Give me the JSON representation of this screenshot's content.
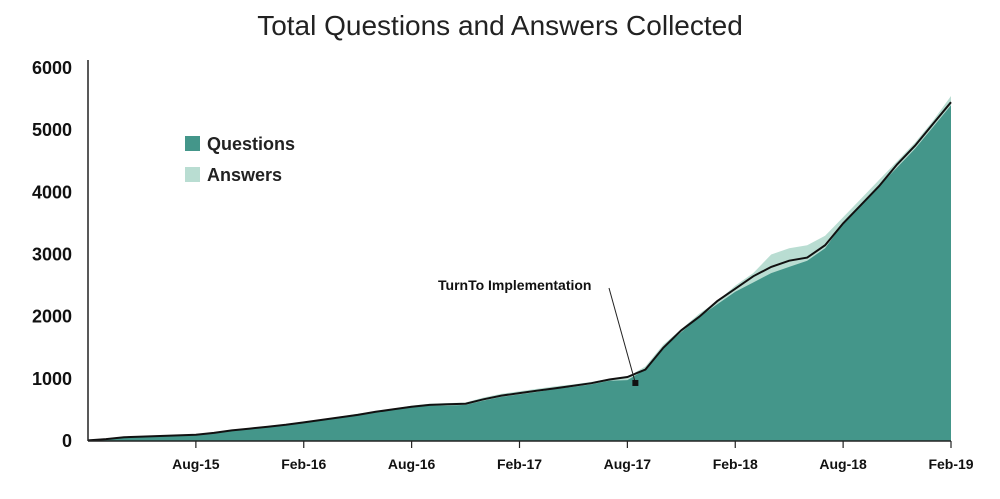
{
  "chart_data": {
    "type": "area",
    "title": "Total Questions and Answers Collected",
    "xlabel": "",
    "ylabel": "",
    "ylim": [
      0,
      6000
    ],
    "yticks": [
      0,
      1000,
      2000,
      3000,
      4000,
      5000,
      6000
    ],
    "xticks": [
      "Aug-15",
      "Feb-16",
      "Aug-16",
      "Feb-17",
      "Aug-17",
      "Feb-18",
      "Aug-18",
      "Feb-19"
    ],
    "x": [
      "Feb-15",
      "Mar-15",
      "Apr-15",
      "May-15",
      "Jun-15",
      "Jul-15",
      "Aug-15",
      "Sep-15",
      "Oct-15",
      "Nov-15",
      "Dec-15",
      "Jan-16",
      "Feb-16",
      "Mar-16",
      "Apr-16",
      "May-16",
      "Jun-16",
      "Jul-16",
      "Aug-16",
      "Sep-16",
      "Oct-16",
      "Nov-16",
      "Dec-16",
      "Jan-17",
      "Feb-17",
      "Mar-17",
      "Apr-17",
      "May-17",
      "Jun-17",
      "Jul-17",
      "Aug-17",
      "Sep-17",
      "Oct-17",
      "Nov-17",
      "Dec-17",
      "Jan-18",
      "Feb-18",
      "Mar-18",
      "Apr-18",
      "May-18",
      "Jun-18",
      "Jul-18",
      "Aug-18",
      "Sep-18",
      "Oct-18",
      "Nov-18",
      "Dec-18",
      "Jan-19",
      "Feb-19"
    ],
    "series": [
      {
        "name": "Questions",
        "color": "#44968a",
        "values": [
          10,
          30,
          60,
          70,
          80,
          90,
          100,
          130,
          170,
          200,
          230,
          260,
          300,
          340,
          380,
          420,
          470,
          510,
          550,
          570,
          570,
          580,
          650,
          710,
          750,
          790,
          840,
          870,
          910,
          970,
          980,
          1150,
          1500,
          1750,
          2000,
          2200,
          2400,
          2550,
          2700,
          2800,
          2900,
          3100,
          3500,
          3800,
          4100,
          4400,
          4700,
          5050,
          5400
        ]
      },
      {
        "name": "Answers",
        "color": "#b9ddd2",
        "values": [
          10,
          30,
          60,
          70,
          80,
          90,
          100,
          140,
          180,
          210,
          240,
          270,
          300,
          350,
          390,
          440,
          480,
          520,
          570,
          600,
          610,
          620,
          700,
          760,
          800,
          840,
          880,
          910,
          950,
          1000,
          1030,
          1200,
          1550,
          1800,
          2050,
          2250,
          2500,
          2700,
          3000,
          3100,
          3150,
          3300,
          3600,
          3900,
          4200,
          4500,
          4800,
          5150,
          5550
        ]
      }
    ],
    "total_line": {
      "values": [
        10,
        30,
        60,
        70,
        80,
        90,
        100,
        130,
        170,
        200,
        230,
        260,
        300,
        340,
        380,
        420,
        470,
        510,
        550,
        580,
        590,
        600,
        670,
        730,
        770,
        810,
        850,
        890,
        930,
        990,
        1030,
        1150,
        1500,
        1780,
        2000,
        2250,
        2450,
        2650,
        2800,
        2900,
        2950,
        3150,
        3500,
        3800,
        4100,
        4450,
        4750,
        5100,
        5450
      ]
    },
    "legend": {
      "position": "top-left",
      "entries": [
        "Questions",
        "Answers"
      ]
    },
    "annotations": [
      {
        "text": "TurnTo Implementation",
        "x": "Aug-17",
        "y": 1030
      }
    ],
    "colors": {
      "questions": "#44968a",
      "answers": "#b9ddd2",
      "line": "#111111",
      "axis": "#222222"
    }
  }
}
